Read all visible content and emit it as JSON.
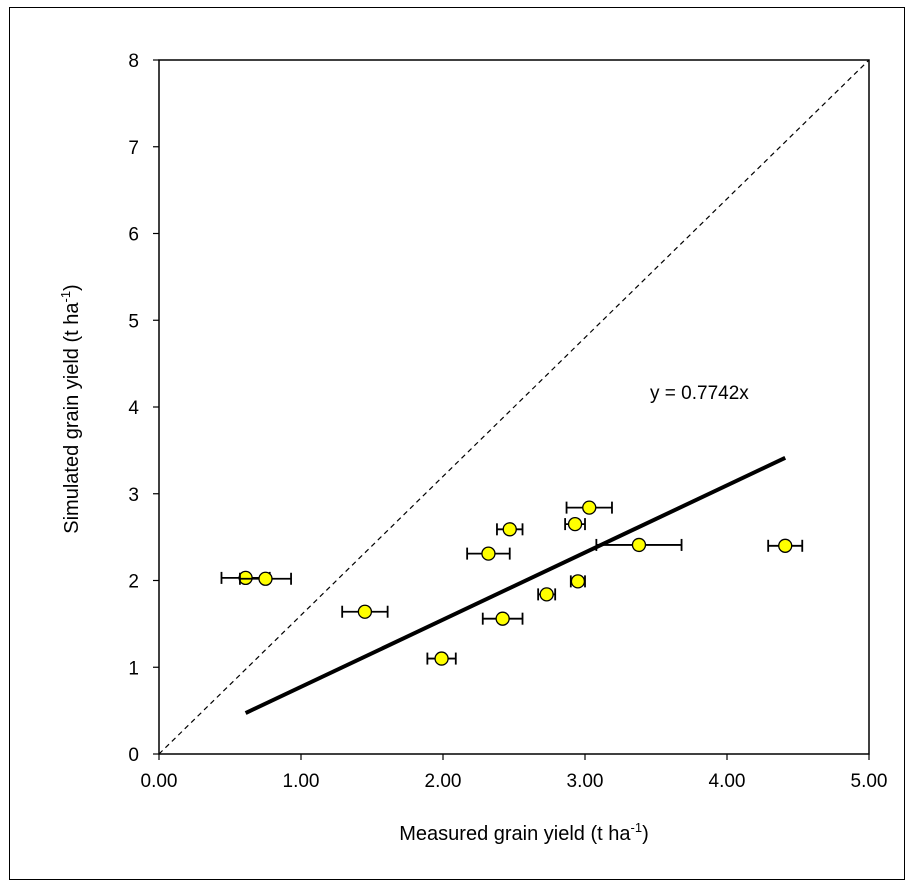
{
  "chart_data": {
    "type": "scatter",
    "xlabel": {
      "main": "Measured grain yield (t ha",
      "sup": "-1",
      "tail": ")"
    },
    "ylabel": {
      "main": "Simulated grain yield (t ha",
      "sup": "-1",
      "tail": ")"
    },
    "xlim": [
      0,
      5
    ],
    "ylim": [
      0,
      8
    ],
    "x_ticks": [
      "0.00",
      "1.00",
      "2.00",
      "3.00",
      "4.00",
      "5.00"
    ],
    "y_ticks": [
      "0",
      "1",
      "2",
      "3",
      "4",
      "5",
      "6",
      "7",
      "8"
    ],
    "x_tick_values": [
      0,
      1,
      2,
      3,
      4,
      5
    ],
    "y_tick_values": [
      0,
      1,
      2,
      3,
      4,
      5,
      6,
      7,
      8
    ],
    "points": [
      {
        "x": 0.61,
        "y": 2.03,
        "xerr": 0.17
      },
      {
        "x": 0.75,
        "y": 2.02,
        "xerr": 0.18
      },
      {
        "x": 1.45,
        "y": 1.64,
        "xerr": 0.16
      },
      {
        "x": 1.99,
        "y": 1.1,
        "xerr": 0.1
      },
      {
        "x": 2.32,
        "y": 2.31,
        "xerr": 0.15
      },
      {
        "x": 2.42,
        "y": 1.56,
        "xerr": 0.14
      },
      {
        "x": 2.47,
        "y": 2.59,
        "xerr": 0.09
      },
      {
        "x": 2.73,
        "y": 1.84,
        "xerr": 0.06
      },
      {
        "x": 2.93,
        "y": 2.65,
        "xerr": 0.07
      },
      {
        "x": 2.95,
        "y": 1.99,
        "xerr": 0.05
      },
      {
        "x": 3.03,
        "y": 2.84,
        "xerr": 0.16
      },
      {
        "x": 3.38,
        "y": 2.41,
        "xerr": 0.3
      },
      {
        "x": 4.41,
        "y": 2.4,
        "xerr": 0.12
      }
    ],
    "regression": {
      "slope": 0.7742,
      "x_range": [
        0.61,
        4.41
      ],
      "label": "y = 0.7742x"
    },
    "reference_line": {
      "slope": 1,
      "style": "dashed"
    },
    "marker_color": "#ffff00",
    "grid": false,
    "legend": "none"
  }
}
